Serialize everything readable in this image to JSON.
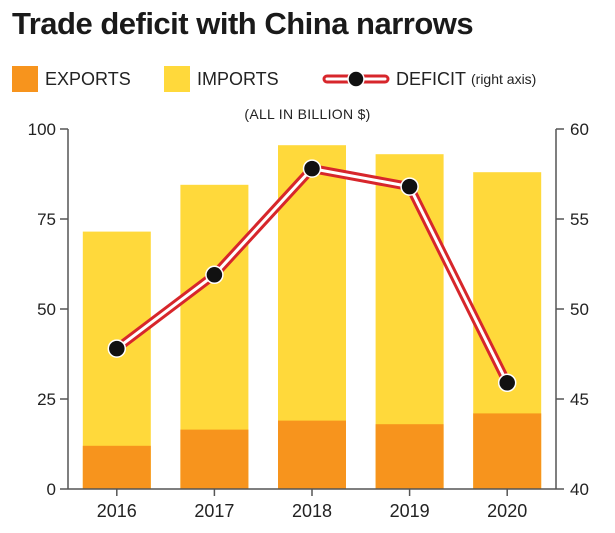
{
  "chart_data": {
    "type": "bar",
    "title": "Trade deficit with China narrows",
    "subtitle": "(ALL IN BILLION $)",
    "categories": [
      "2016",
      "2017",
      "2018",
      "2019",
      "2020"
    ],
    "series": [
      {
        "name": "EXPORTS",
        "type": "bar",
        "axis": "left",
        "color": "#f7941d",
        "values": [
          12,
          16.5,
          19,
          18,
          21
        ]
      },
      {
        "name": "IMPORTS",
        "type": "bar",
        "axis": "left",
        "color": "#ffd93b",
        "values": [
          71.5,
          84.5,
          95.5,
          93,
          88
        ]
      },
      {
        "name": "DEFICIT",
        "type": "line",
        "axis": "right",
        "color": "#d7262b",
        "values": [
          47.8,
          51.9,
          57.8,
          56.8,
          45.9
        ]
      }
    ],
    "legend": {
      "exports": "EXPORTS",
      "imports": "IMPORTS",
      "deficit": "DEFICIT",
      "deficit_note": "(right axis)",
      "placement": "top"
    },
    "y_left": {
      "min": 0,
      "max": 100,
      "ticks": [
        "0",
        "25",
        "50",
        "75",
        "100"
      ]
    },
    "y_right": {
      "min": 40,
      "max": 60,
      "ticks": [
        "40",
        "45",
        "50",
        "55",
        "60"
      ]
    },
    "bars_overlap": true,
    "grid": false
  }
}
